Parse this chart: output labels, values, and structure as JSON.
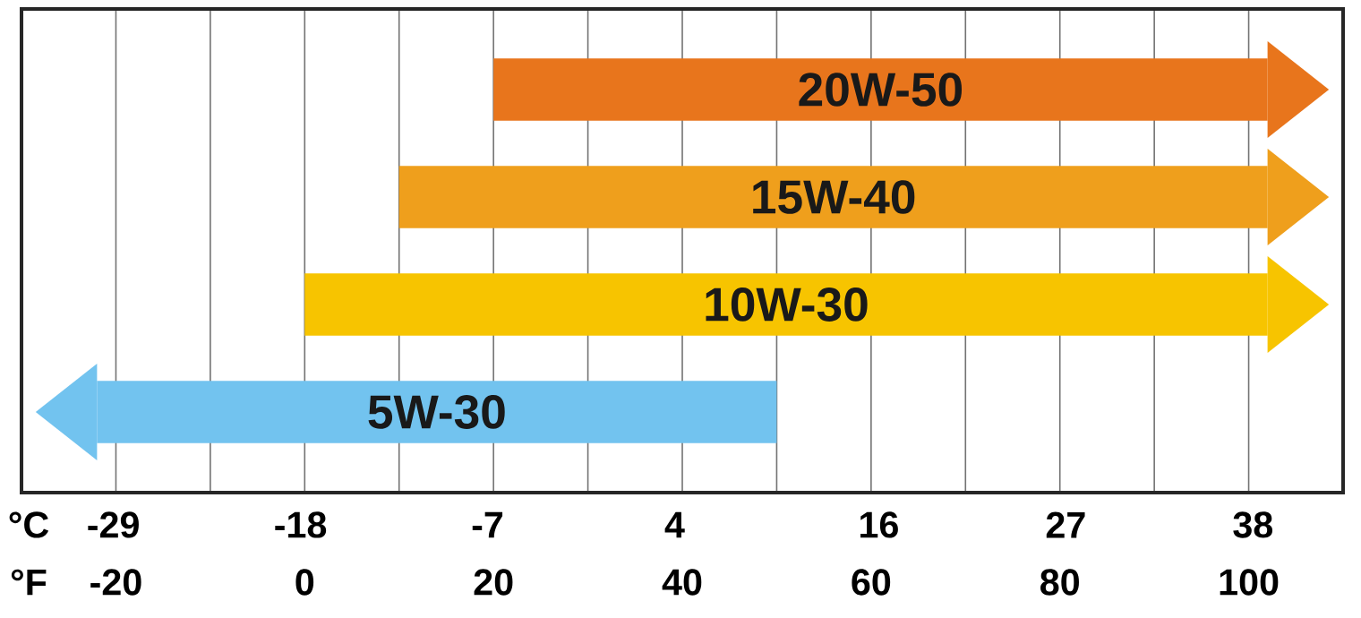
{
  "chart_data": {
    "type": "bar",
    "orientation": "horizontal",
    "categories": [
      "20W-50",
      "15W-40",
      "10W-30",
      "5W-30"
    ],
    "base": [
      20,
      10,
      0,
      -22
    ],
    "values": [
      82,
      92,
      102,
      72
    ],
    "colors": [
      "#e8751c",
      "#ef9f1c",
      "#f7c400",
      "#72c3ef"
    ],
    "xlabel": "°F",
    "x2label": "°C",
    "xlim": [
      -30,
      110
    ],
    "xticks": [
      -20,
      {
        "value": -10,
        "label": null
      },
      0,
      {
        "value": 10,
        "label": null
      },
      20,
      {
        "value": 30,
        "label": null
      },
      40,
      {
        "value": 50,
        "label": null
      },
      60,
      {
        "value": 70,
        "label": null
      },
      80,
      {
        "value": 90,
        "label": null
      },
      100
    ],
    "x2lim": [
      -34.4,
      43.3
    ],
    "x2ticks": [
      -29,
      -18,
      -7,
      4,
      16,
      27,
      38
    ],
    "grid": "x"
  }
}
